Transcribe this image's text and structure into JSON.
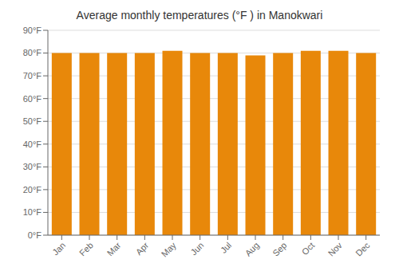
{
  "chart_data": {
    "type": "bar",
    "title": "Average monthly temperatures (°F ) in Manokwari",
    "categories": [
      "Jan",
      "Feb",
      "Mar",
      "Apr",
      "May",
      "Jun",
      "Jul",
      "Aug",
      "Sep",
      "Oct",
      "Nov",
      "Dec"
    ],
    "values": [
      80,
      80,
      80,
      80,
      81,
      80,
      80,
      79,
      80,
      81,
      81,
      80
    ],
    "color": "#E8880A",
    "ylim": [
      0,
      90
    ],
    "yticks": [
      {
        "value": 0,
        "label": "0°F"
      },
      {
        "value": 10,
        "label": "10°F"
      },
      {
        "value": 20,
        "label": "20°F"
      },
      {
        "value": 30,
        "label": "30°F"
      },
      {
        "value": 40,
        "label": "40°F"
      },
      {
        "value": 50,
        "label": "50°F"
      },
      {
        "value": 60,
        "label": "60°F"
      },
      {
        "value": 70,
        "label": "70°F"
      },
      {
        "value": 80,
        "label": "80°F"
      },
      {
        "value": 90,
        "label": "90°F"
      }
    ],
    "grid": true
  }
}
